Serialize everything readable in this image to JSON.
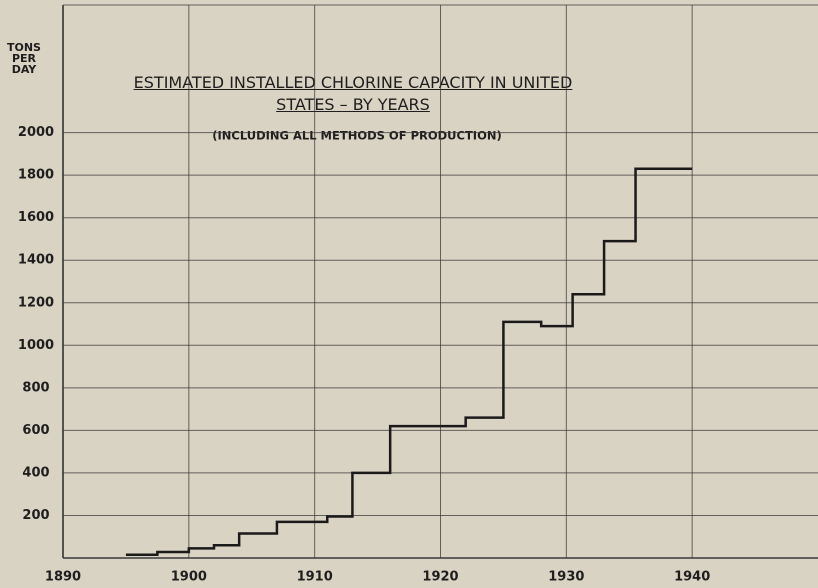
{
  "chart_data": {
    "type": "step",
    "title": "ESTIMATED INSTALLED CHLORINE CAPACITY IN UNITED STATES – BY YEARS",
    "subtitle": "(INCLUDING ALL METHODS OF PRODUCTION)",
    "y_label": "TONS PER DAY",
    "x": [
      1895,
      1897.5,
      1900,
      1902,
      1904,
      1907,
      1911,
      1913,
      1916,
      1922,
      1925,
      1928,
      1930.5,
      1933,
      1935.5,
      1940
    ],
    "values": [
      15,
      28,
      45,
      60,
      115,
      170,
      195,
      400,
      620,
      660,
      1110,
      1090,
      1240,
      1490,
      1830,
      1830
    ],
    "color": "#1a1a1a",
    "xlim": [
      1890,
      1950
    ],
    "xticks": [
      1890,
      1900,
      1910,
      1920,
      1930,
      1940
    ],
    "ylim": [
      0,
      2600
    ],
    "yticks": [
      200,
      400,
      600,
      800,
      1000,
      1200,
      1400,
      1600,
      1800,
      2000
    ],
    "grid": true
  }
}
